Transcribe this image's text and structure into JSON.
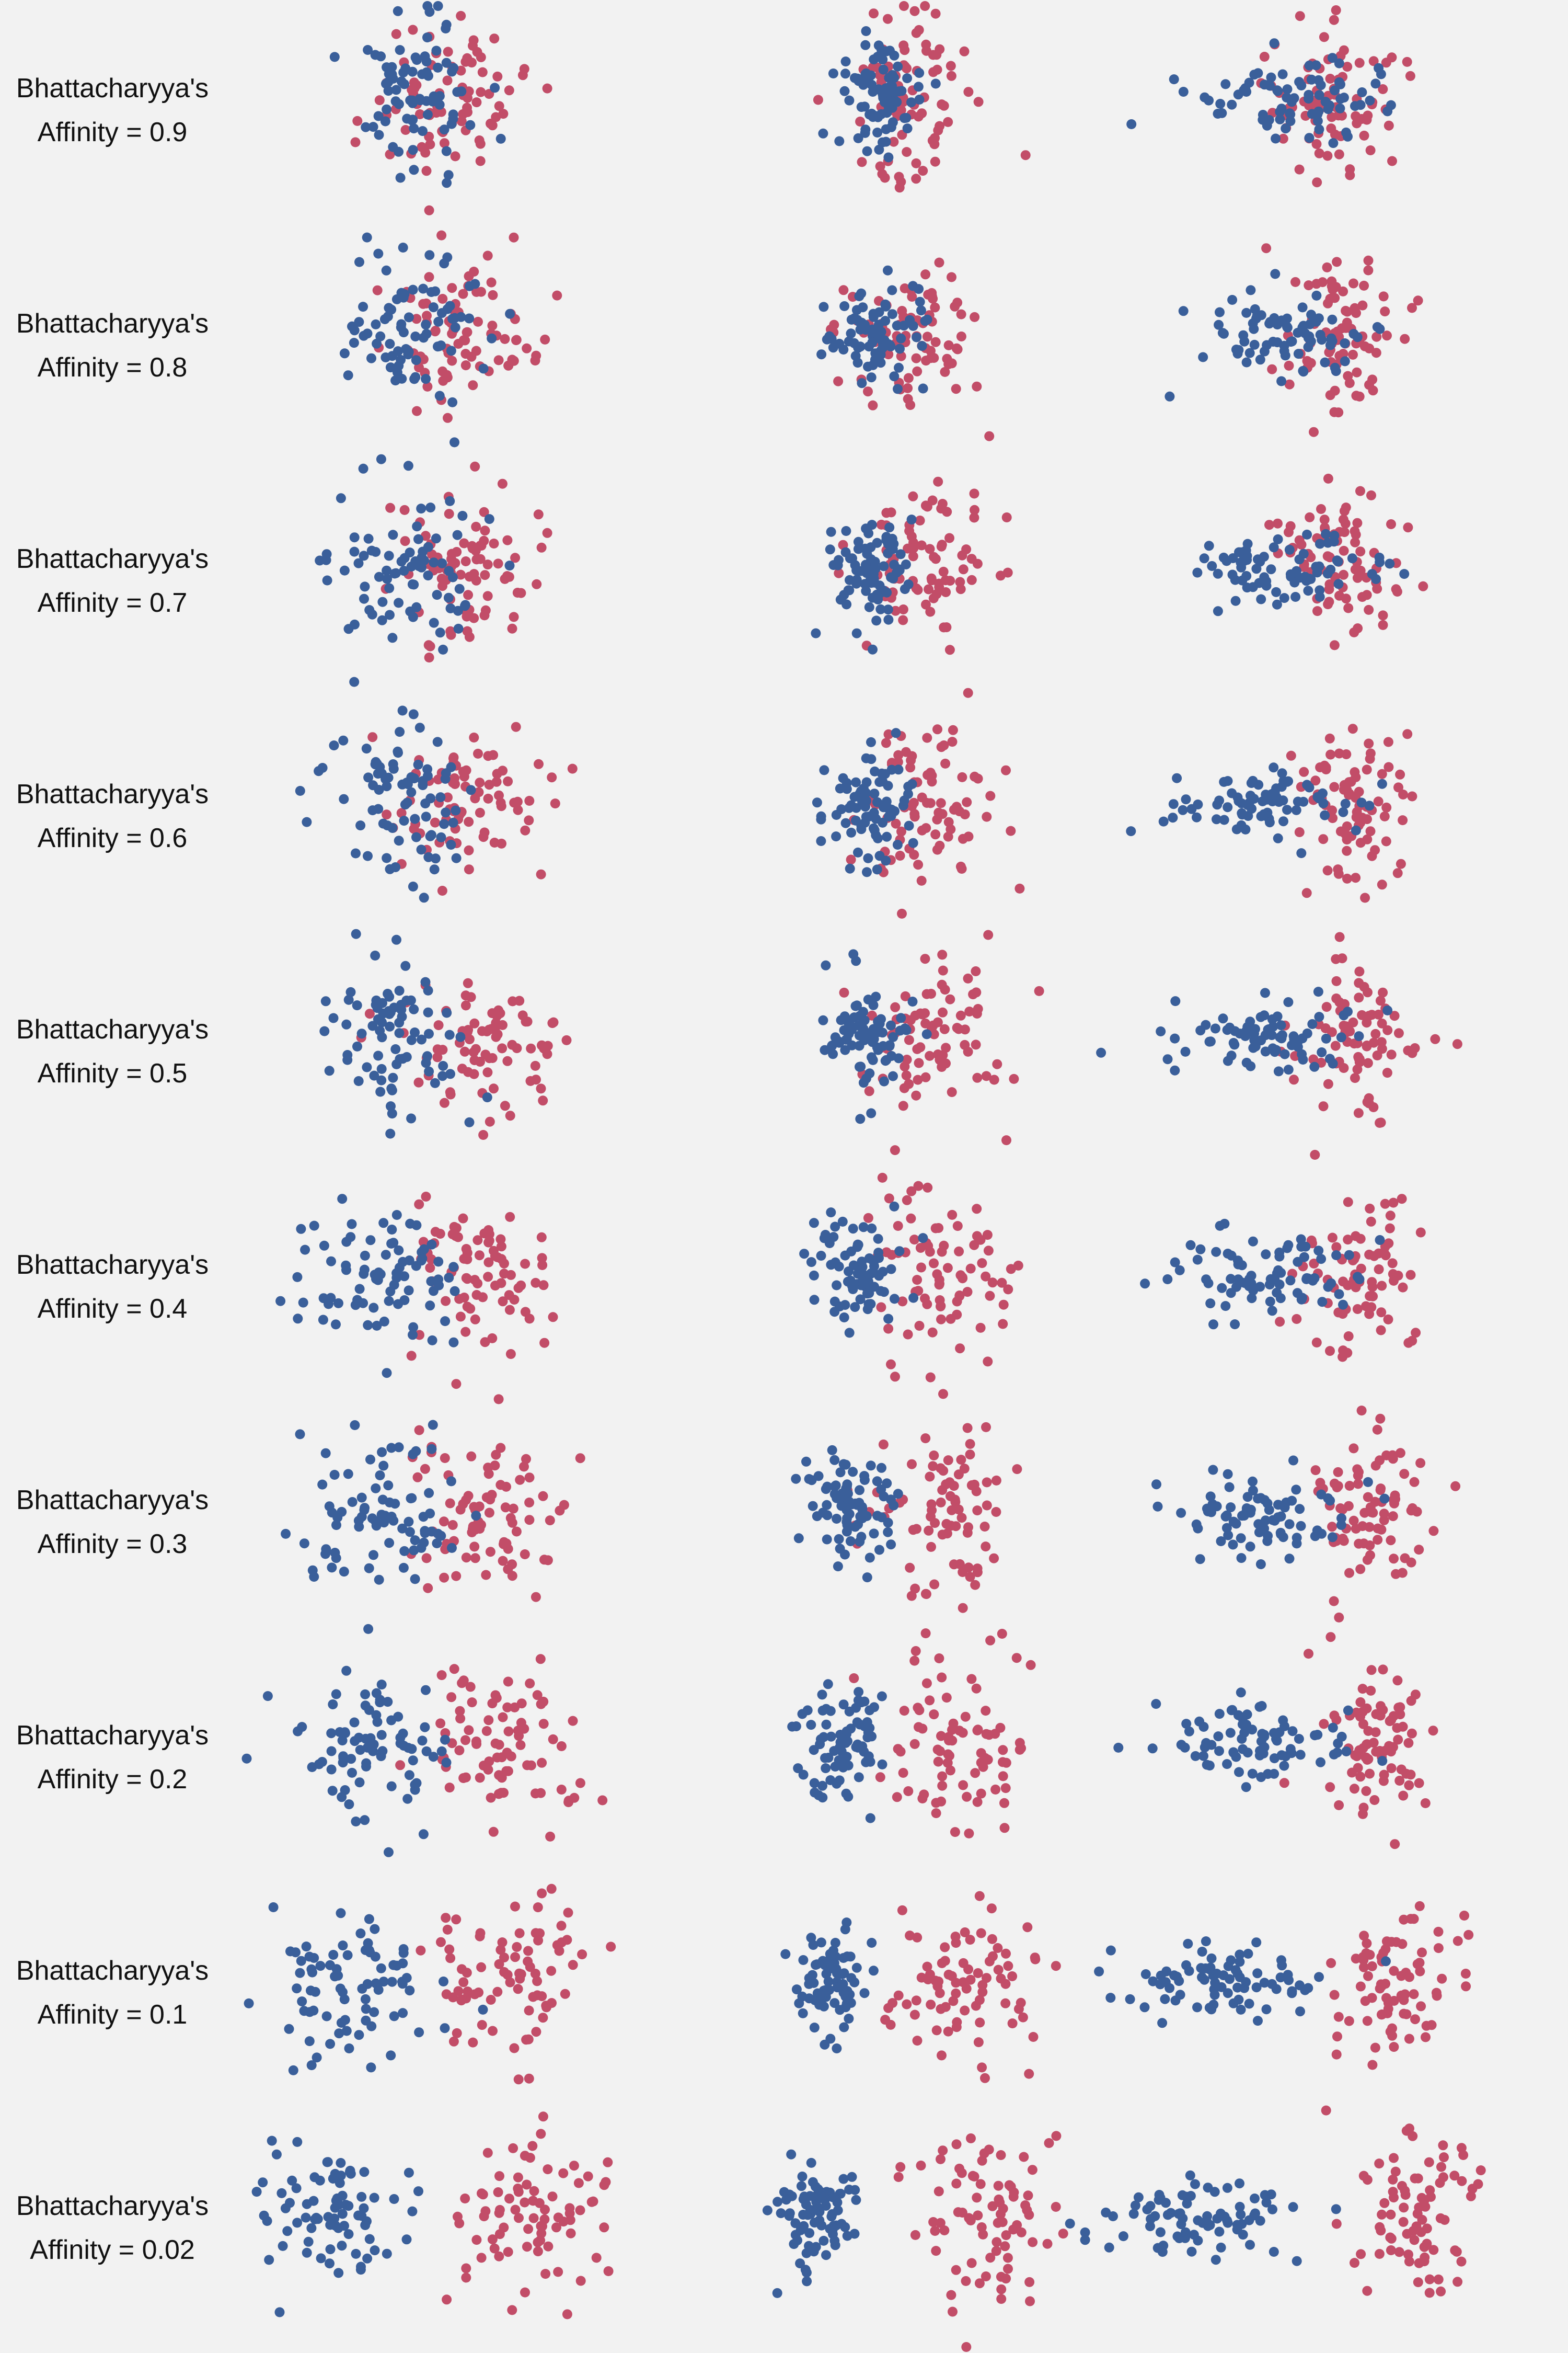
{
  "chart_data": {
    "type": "scatter",
    "grid": false,
    "colors": {
      "class_a": "#3a5f9a",
      "class_b": "#c24d68"
    },
    "points_per_class": 80,
    "columns": [
      {
        "shape": "isotropic"
      },
      {
        "shape": "anisotropic_compact"
      },
      {
        "shape": "anisotropic_elongated"
      }
    ],
    "rows": [
      {
        "label_line1": "Bhattacharyya's",
        "label_line2": "Affinity = 0.9",
        "affinity": 0.9,
        "mean_separation": 0.9
      },
      {
        "label_line1": "Bhattacharyya's",
        "label_line2": "Affinity = 0.8",
        "affinity": 0.8,
        "mean_separation": 1.3
      },
      {
        "label_line1": "Bhattacharyya's",
        "label_line2": "Affinity = 0.7",
        "affinity": 0.7,
        "mean_separation": 1.7
      },
      {
        "label_line1": "Bhattacharyya's",
        "label_line2": "Affinity = 0.6",
        "affinity": 0.6,
        "mean_separation": 2.0
      },
      {
        "label_line1": "Bhattacharyya's",
        "label_line2": "Affinity = 0.5",
        "affinity": 0.5,
        "mean_separation": 2.35
      },
      {
        "label_line1": "Bhattacharyya's",
        "label_line2": "Affinity = 0.4",
        "affinity": 0.4,
        "mean_separation": 2.7
      },
      {
        "label_line1": "Bhattacharyya's",
        "label_line2": "Affinity = 0.3",
        "affinity": 0.3,
        "mean_separation": 3.1
      },
      {
        "label_line1": "Bhattacharyya's",
        "label_line2": "Affinity = 0.2",
        "affinity": 0.2,
        "mean_separation": 3.6
      },
      {
        "label_line1": "Bhattacharyya's",
        "label_line2": "Affinity = 0.1",
        "affinity": 0.1,
        "mean_separation": 4.3
      },
      {
        "label_line1": "Bhattacharyya's",
        "label_line2": "Affinity = 0.02",
        "affinity": 0.02,
        "mean_separation": 5.6
      }
    ]
  }
}
